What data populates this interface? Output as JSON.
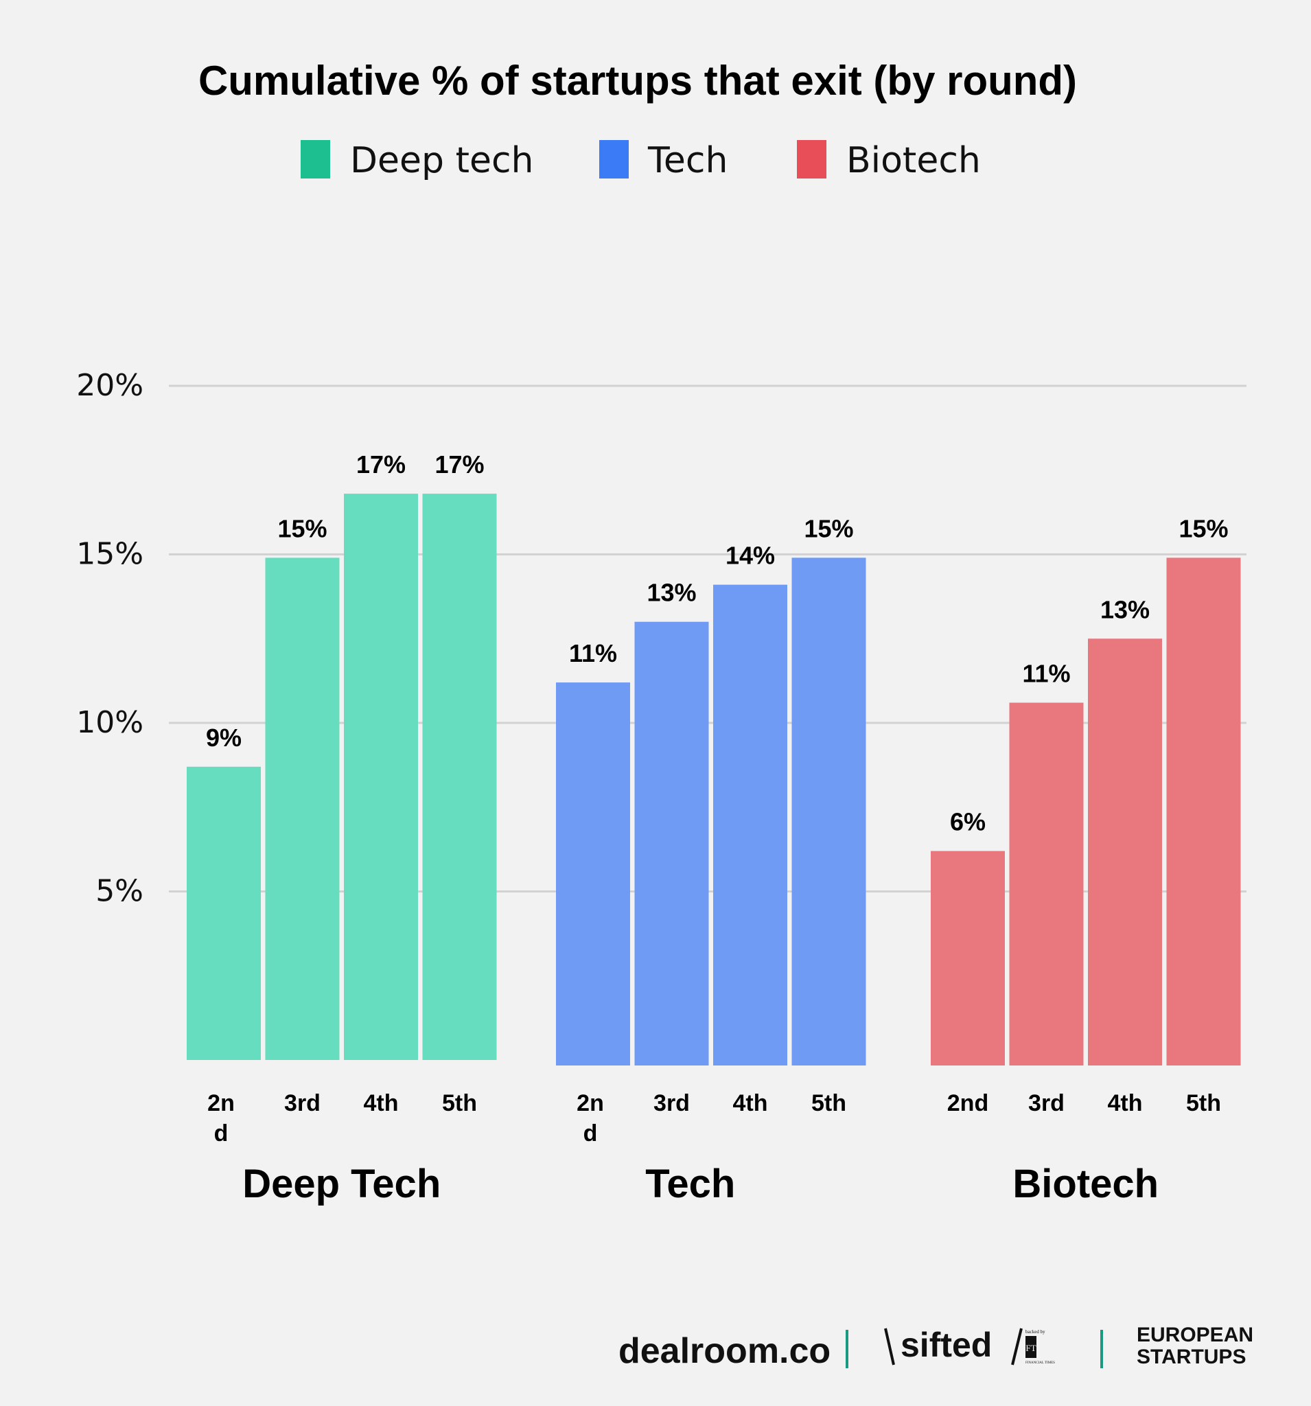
{
  "chart_data": {
    "type": "bar",
    "title": "Cumulative % of startups that exit (by round)",
    "xlabel": "",
    "ylabel": "",
    "ylim": [
      0,
      20
    ],
    "yticks": [
      "5%",
      "10%",
      "15%",
      "20%"
    ],
    "ytick_values": [
      5,
      10,
      15,
      20
    ],
    "grid": true,
    "legend_position": "top-center",
    "categories": [
      "2nd",
      "3rd",
      "4th",
      "5th"
    ],
    "series": [
      {
        "name": "Deep tech",
        "group_label": "Deep Tech",
        "legend_color": "#1dbf91",
        "bar_color": "#66ddbf",
        "category_labels": [
          "2n d",
          "3rd",
          "4th",
          "5th"
        ],
        "values": [
          8.7,
          14.9,
          16.8,
          16.8
        ],
        "data_labels": [
          "9%",
          "15%",
          "17%",
          "17%"
        ]
      },
      {
        "name": "Tech",
        "group_label": "Tech",
        "legend_color": "#3b7bf5",
        "bar_color": "#6f9bf5",
        "category_labels": [
          "2n d",
          "3rd",
          "4th",
          "5th"
        ],
        "values": [
          11.2,
          13.0,
          14.1,
          14.9
        ],
        "data_labels": [
          "11%",
          "13%",
          "14%",
          "15%"
        ]
      },
      {
        "name": "Biotech",
        "group_label": "Biotech",
        "legend_color": "#e84e57",
        "bar_color": "#e8787e",
        "category_labels": [
          "2nd",
          "3rd",
          "4th",
          "5th"
        ],
        "values": [
          6.2,
          10.6,
          12.5,
          14.9
        ],
        "data_labels": [
          "6%",
          "11%",
          "13%",
          "15%"
        ]
      }
    ]
  },
  "footer": {
    "logos": {
      "dealroom": "dealroom.co",
      "sifted": "sifted",
      "ft_backed": "backed by",
      "ft": "FT",
      "ft_name": "FINANCIAL TIMES",
      "european_startups_line1": "EUROPEAN",
      "european_startups_line2": "STARTUPS"
    },
    "separator_color": "#1a9a80"
  }
}
